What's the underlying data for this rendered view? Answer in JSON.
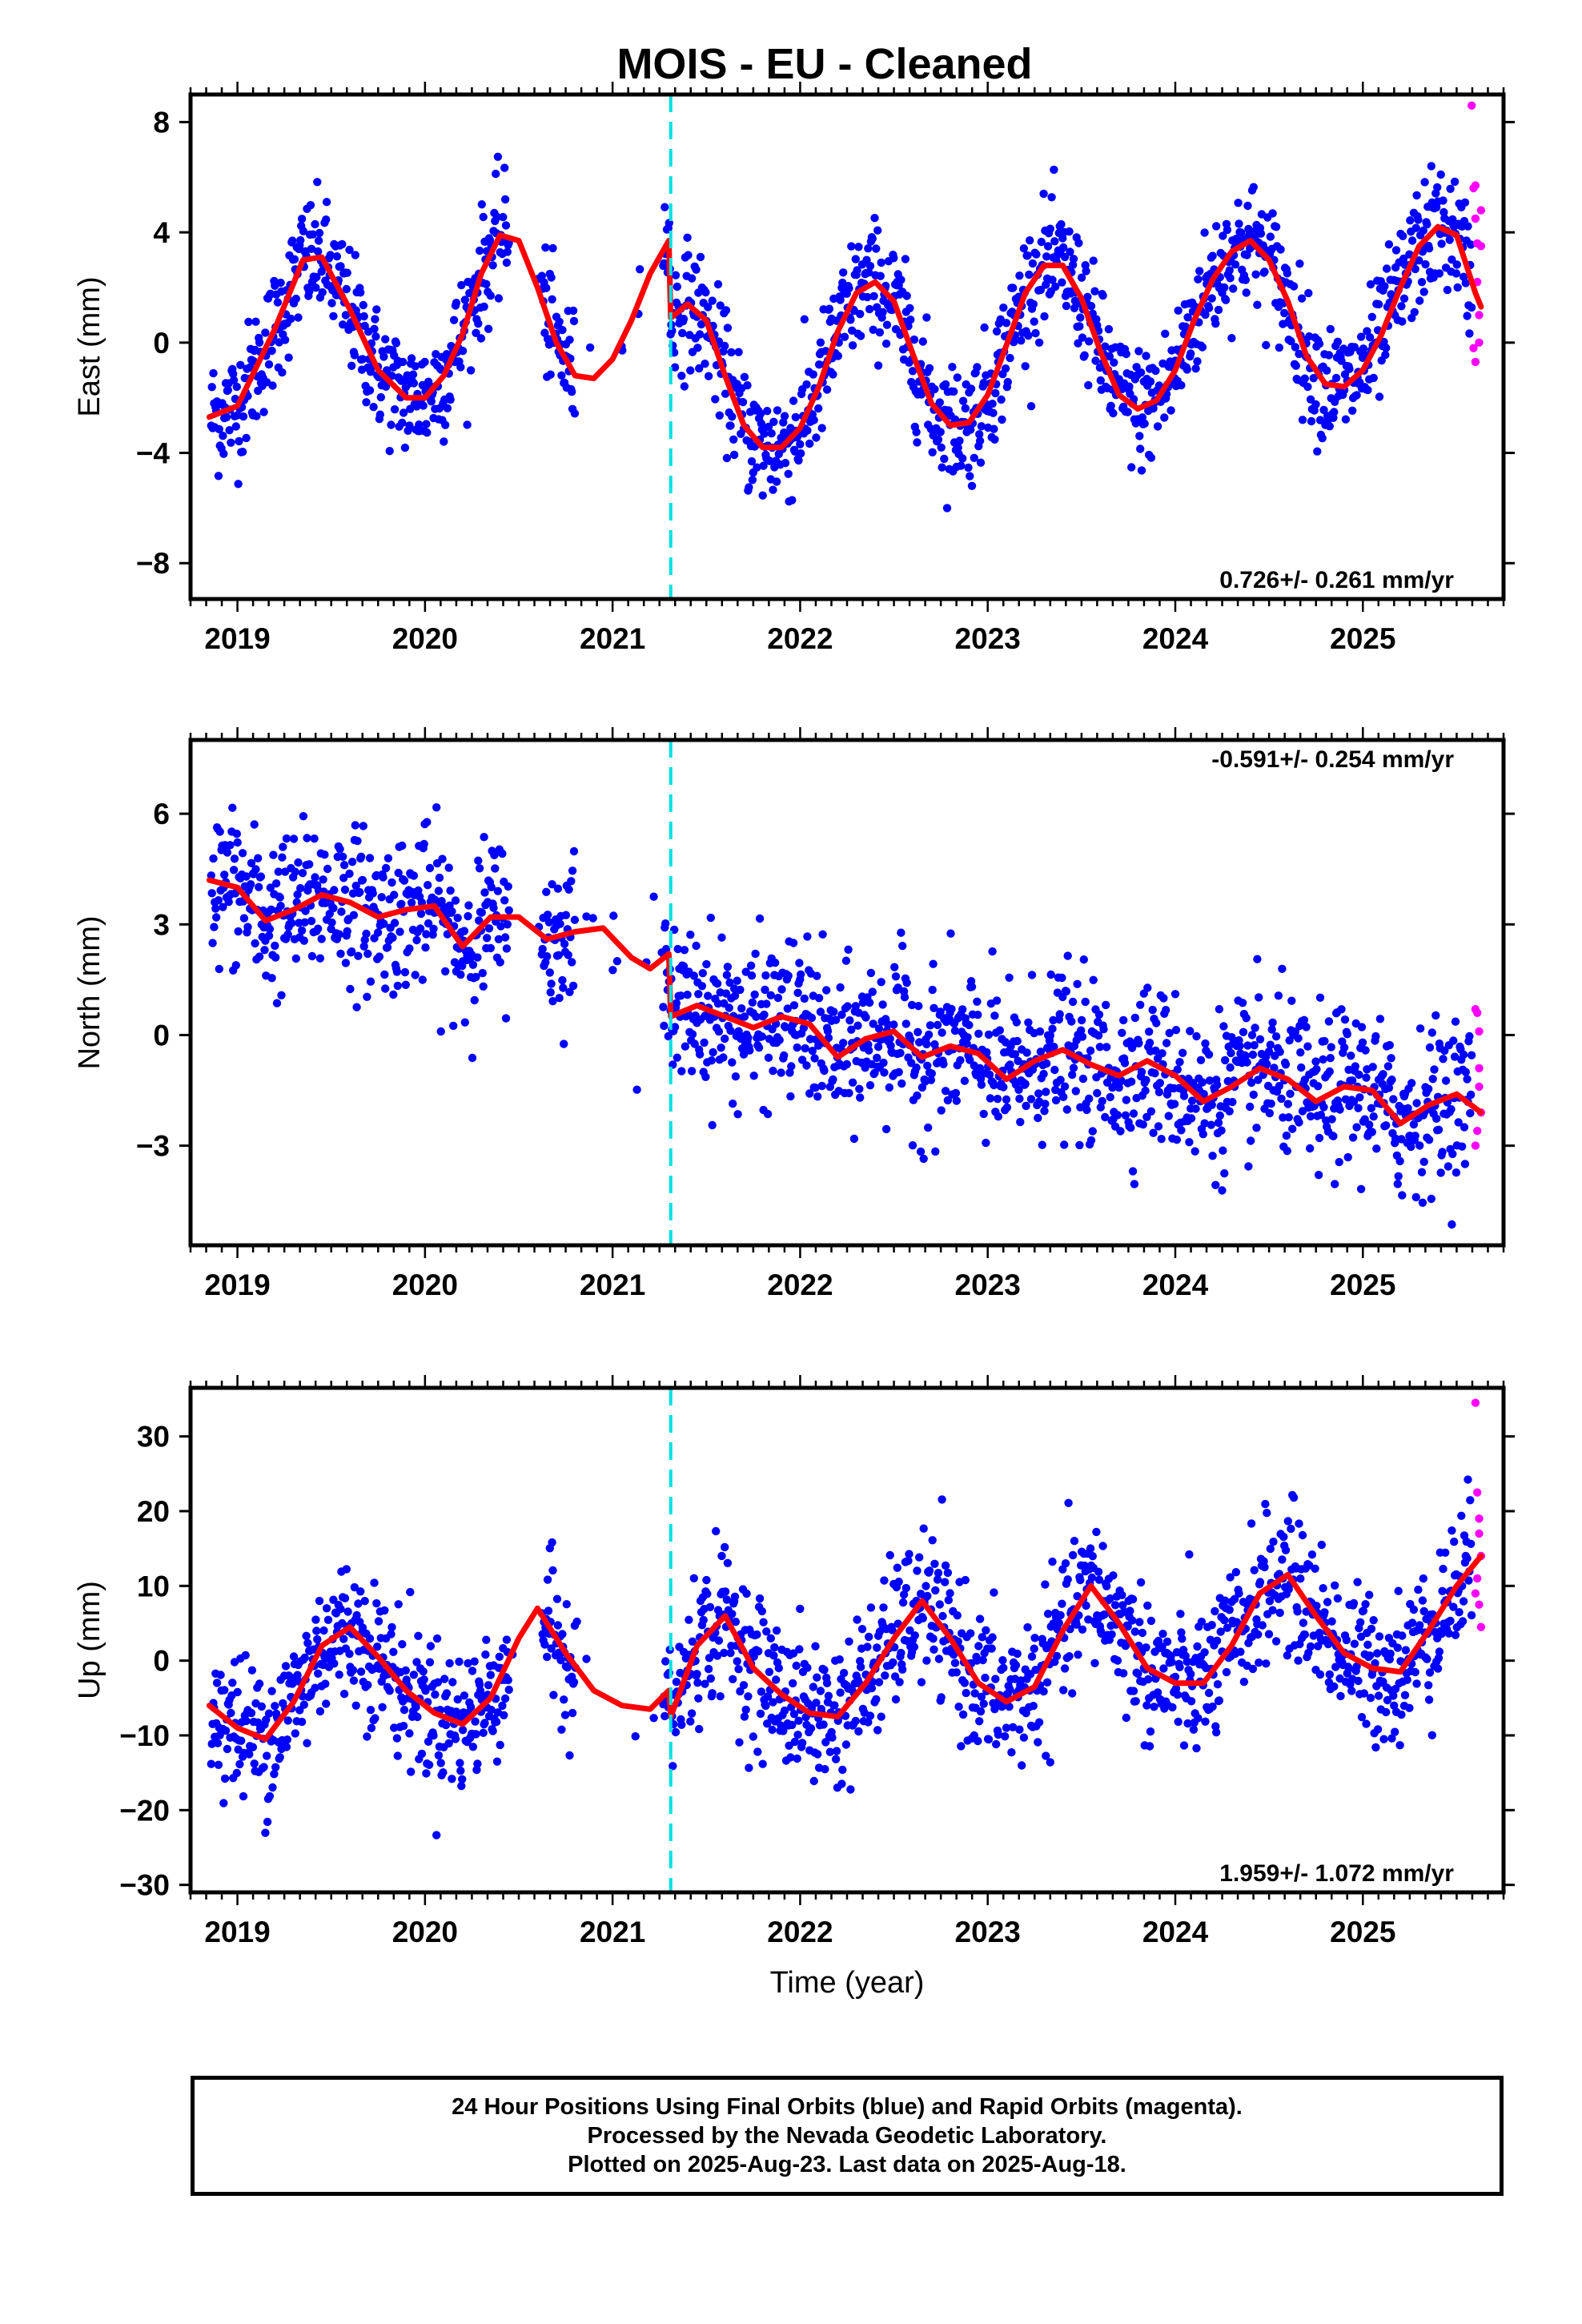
{
  "title": "MOIS  - EU - Cleaned",
  "colors": {
    "final_orbits": "#0000ff",
    "rapid_orbits": "#ff00ff",
    "model": "#ff0000",
    "offset_line": "#00e0e0",
    "axes": "#000000"
  },
  "footer": {
    "line1": "24 Hour Positions Using Final Orbits (blue) and Rapid Orbits (magenta).",
    "line2": "Processed by the Nevada Geodetic Laboratory.",
    "line3": "Plotted on 2025-Aug-23. Last data on 2025-Aug-18."
  },
  "chart_data": [
    {
      "type": "scatter",
      "component": "east",
      "ylabel": "East (mm)",
      "xlim": [
        2018.75,
        2025.75
      ],
      "ylim": [
        -9.3,
        9.0
      ],
      "yticks": [
        8,
        4,
        0,
        -4,
        -8
      ],
      "yticklabels": [
        "8",
        "4",
        "0",
        "−4",
        "−8"
      ],
      "xticks": [
        2019,
        2020,
        2021,
        2022,
        2023,
        2024,
        2025
      ],
      "xticklabels": [
        "2019",
        "2020",
        "2021",
        "2022",
        "2023",
        "2024",
        "2025"
      ],
      "rate_text": "0.726+/- 0.261 mm/yr",
      "rate_position": "bottom-right",
      "offset_epoch": 2021.31,
      "model": {
        "x": [
          2018.85,
          2019.0,
          2019.2,
          2019.35,
          2019.45,
          2019.6,
          2019.75,
          2019.9,
          2020.0,
          2020.1,
          2020.2,
          2020.3,
          2020.4,
          2020.5,
          2020.6,
          2020.7,
          2020.8,
          2020.9,
          2021.0,
          2021.1,
          2021.2,
          2021.3,
          2021.31,
          2021.4,
          2021.5,
          2021.6,
          2021.7,
          2021.8,
          2021.9,
          2022.0,
          2022.1,
          2022.2,
          2022.3,
          2022.4,
          2022.5,
          2022.6,
          2022.7,
          2022.8,
          2022.9,
          2023.0,
          2023.1,
          2023.2,
          2023.3,
          2023.4,
          2023.5,
          2023.6,
          2023.7,
          2023.8,
          2023.9,
          2024.0,
          2024.1,
          2024.2,
          2024.3,
          2024.4,
          2024.5,
          2024.6,
          2024.7,
          2024.8,
          2024.9,
          2025.0,
          2025.1,
          2025.2,
          2025.3,
          2025.4,
          2025.5,
          2025.6,
          2025.63
        ],
        "y": [
          -2.7,
          -2.3,
          0.5,
          3.0,
          3.1,
          1.2,
          -1.0,
          -2.0,
          -2.0,
          -1.2,
          0.3,
          2.5,
          3.9,
          3.7,
          2.0,
          0.0,
          -1.2,
          -1.3,
          -0.6,
          0.8,
          2.5,
          3.7,
          0.9,
          1.4,
          0.8,
          -1.2,
          -3.0,
          -3.8,
          -3.8,
          -3.1,
          -1.6,
          0.4,
          1.8,
          2.2,
          1.5,
          -0.4,
          -2.2,
          -3.0,
          -2.9,
          -1.9,
          -0.1,
          1.8,
          2.8,
          2.8,
          1.6,
          -0.3,
          -1.9,
          -2.4,
          -2.1,
          -1.0,
          0.8,
          2.3,
          3.3,
          3.7,
          3.0,
          1.5,
          -0.5,
          -1.5,
          -1.6,
          -1.0,
          0.3,
          2.0,
          3.5,
          4.2,
          3.9,
          1.8,
          1.3
        ]
      },
      "rapid_points": {
        "x": [
          2025.58,
          2025.59,
          2025.6,
          2025.6,
          2025.61,
          2025.61,
          2025.62,
          2025.62,
          2025.63,
          2025.63,
          2025.6,
          2025.59
        ],
        "y": [
          8.6,
          5.6,
          5.7,
          4.5,
          3.6,
          2.2,
          1.0,
          0.0,
          4.8,
          3.5,
          -0.7,
          -0.2
        ]
      },
      "noise_sd": 1.1
    },
    {
      "type": "scatter",
      "component": "north",
      "ylabel": "North (mm)",
      "xlim": [
        2018.75,
        2025.75
      ],
      "ylim": [
        -5.7,
        8.0
      ],
      "yticks": [
        6,
        3,
        0,
        -3
      ],
      "yticklabels": [
        "6",
        "3",
        "0",
        "−3"
      ],
      "xticks": [
        2019,
        2020,
        2021,
        2022,
        2023,
        2024,
        2025
      ],
      "xticklabels": [
        "2019",
        "2020",
        "2021",
        "2022",
        "2023",
        "2024",
        "2025"
      ],
      "rate_text": "-0.591+/- 0.254 mm/yr",
      "rate_position": "top-right",
      "offset_epoch": 2021.31,
      "model": {
        "x": [
          2018.85,
          2019.0,
          2019.15,
          2019.3,
          2019.45,
          2019.6,
          2019.75,
          2019.9,
          2020.05,
          2020.2,
          2020.35,
          2020.5,
          2020.65,
          2020.8,
          2020.95,
          2021.1,
          2021.2,
          2021.3,
          2021.31,
          2021.45,
          2021.6,
          2021.75,
          2021.9,
          2022.05,
          2022.2,
          2022.35,
          2022.5,
          2022.65,
          2022.8,
          2022.95,
          2023.1,
          2023.25,
          2023.4,
          2023.55,
          2023.7,
          2023.85,
          2024.0,
          2024.15,
          2024.3,
          2024.45,
          2024.6,
          2024.75,
          2024.9,
          2025.05,
          2025.2,
          2025.35,
          2025.5,
          2025.63
        ],
        "y": [
          4.2,
          4.0,
          3.1,
          3.4,
          3.8,
          3.6,
          3.2,
          3.4,
          3.5,
          2.4,
          3.2,
          3.2,
          2.6,
          2.8,
          2.9,
          2.1,
          1.8,
          2.2,
          0.5,
          0.8,
          0.5,
          0.2,
          0.5,
          0.3,
          -0.6,
          -0.1,
          0.1,
          -0.6,
          -0.3,
          -0.5,
          -1.2,
          -0.7,
          -0.4,
          -0.8,
          -1.1,
          -0.7,
          -1.1,
          -1.8,
          -1.4,
          -0.9,
          -1.2,
          -1.8,
          -1.4,
          -1.5,
          -2.4,
          -1.9,
          -1.6,
          -2.1
        ]
      },
      "rapid_points": {
        "x": [
          2025.6,
          2025.61,
          2025.62,
          2025.62,
          2025.63,
          2025.61,
          2025.6,
          2025.62
        ],
        "y": [
          0.7,
          0.6,
          0.1,
          -0.9,
          -2.1,
          -2.6,
          -3.0,
          -1.4
        ]
      },
      "noise_sd": 1.05
    },
    {
      "type": "scatter",
      "component": "up",
      "ylabel": "Up (mm)",
      "xlim": [
        2018.75,
        2025.75
      ],
      "ylim": [
        -31.0,
        36.5
      ],
      "yticks": [
        30,
        20,
        10,
        0,
        -10,
        -20,
        -30
      ],
      "yticklabels": [
        "30",
        "20",
        "10",
        "0",
        "−10",
        "−20",
        "−30"
      ],
      "xticks": [
        2019,
        2020,
        2021,
        2022,
        2023,
        2024,
        2025
      ],
      "xticklabels": [
        "2019",
        "2020",
        "2021",
        "2022",
        "2023",
        "2024",
        "2025"
      ],
      "xlabel": "Time (year)",
      "rate_text": "1.959+/- 1.072 mm/yr",
      "rate_position": "bottom-right",
      "offset_epoch": 2021.31,
      "model": {
        "x": [
          2018.85,
          2019.0,
          2019.15,
          2019.3,
          2019.45,
          2019.6,
          2019.75,
          2019.9,
          2020.05,
          2020.2,
          2020.35,
          2020.5,
          2020.6,
          2020.75,
          2020.9,
          2021.05,
          2021.2,
          2021.3,
          2021.31,
          2021.45,
          2021.6,
          2021.75,
          2021.9,
          2022.05,
          2022.2,
          2022.35,
          2022.5,
          2022.65,
          2022.8,
          2022.95,
          2023.1,
          2023.25,
          2023.4,
          2023.55,
          2023.7,
          2023.85,
          2024.0,
          2024.15,
          2024.3,
          2024.45,
          2024.6,
          2024.75,
          2024.9,
          2025.05,
          2025.2,
          2025.35,
          2025.5,
          2025.63
        ],
        "y": [
          -6.0,
          -9.0,
          -10.5,
          -5.5,
          2.0,
          4.5,
          0.5,
          -4.0,
          -7.0,
          -8.5,
          -5.0,
          3.0,
          7.0,
          1.0,
          -4.0,
          -6.0,
          -6.5,
          -4.0,
          -7.5,
          2.0,
          6.0,
          -1.0,
          -4.5,
          -7.0,
          -7.5,
          -3.0,
          3.0,
          8.0,
          3.0,
          -3.0,
          -5.5,
          -3.5,
          4.0,
          10.0,
          5.0,
          -1.0,
          -3.0,
          -3.0,
          2.0,
          9.0,
          11.5,
          6.0,
          1.0,
          -1.0,
          -1.5,
          4.0,
          10.0,
          14.0
        ]
      },
      "rapid_points": {
        "x": [
          2025.6,
          2025.61,
          2025.62,
          2025.62,
          2025.63,
          2025.61,
          2025.6,
          2025.62,
          2025.63
        ],
        "y": [
          34.5,
          22.5,
          19.0,
          17.0,
          14.0,
          11.0,
          9.0,
          7.5,
          4.5
        ]
      },
      "noise_sd": 4.8
    }
  ]
}
